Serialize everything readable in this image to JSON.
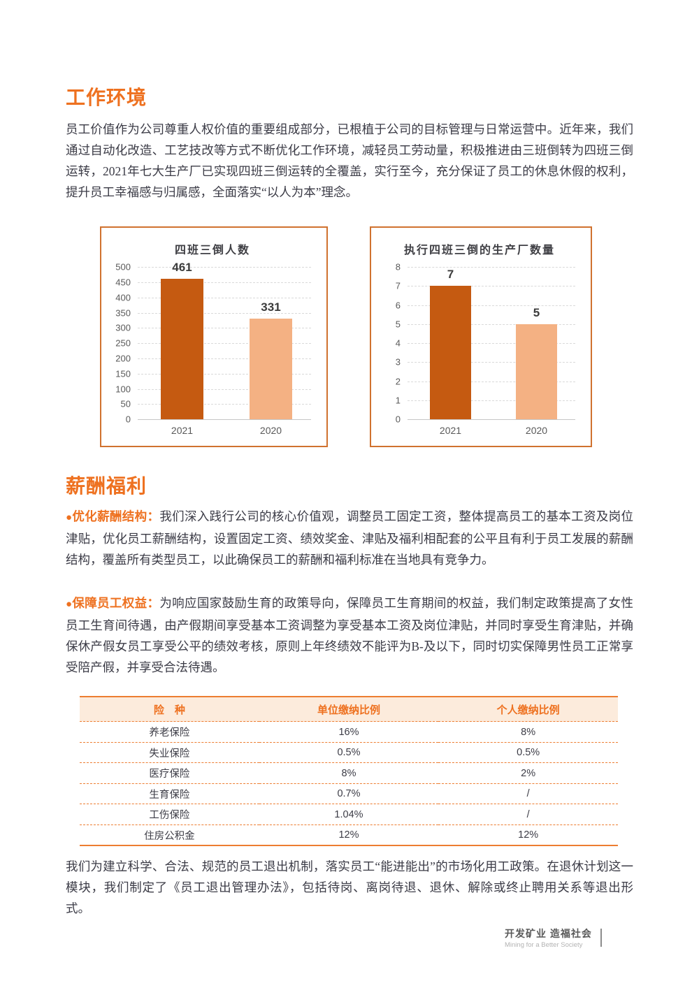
{
  "colors": {
    "accent_orange": "#EE7120",
    "table_line_orange": "#ED7D31",
    "table_header_bg": "#FCEBDC",
    "bar_dark": "#C55A11",
    "bar_light": "#F4B183",
    "body_text": "#3B3B46",
    "axis_text": "#595959",
    "chart_border": "#D0722F"
  },
  "work_env": {
    "title": "工作环境",
    "paragraph": "员工价值作为公司尊重人权价值的重要组成部分，已根植于公司的目标管理与日常运营中。近年来，我们通过自动化改造、工艺技改等方式不断优化工作环境，减轻员工劳动量，积极推进由三班倒转为四班三倒运转，2021年七大生产厂已实现四班三倒运转的全覆盖，实行至今，充分保证了员工的休息休假的权利，提升员工幸福感与归属感，全面落实“以人为本”理念。"
  },
  "chart_data": [
    {
      "type": "bar",
      "title": "四班三倒人数",
      "categories": [
        "2021",
        "2020"
      ],
      "values": [
        461,
        331
      ],
      "ylim": [
        0,
        500
      ],
      "ytick_step": 50,
      "xlabel": "",
      "ylabel": "",
      "grid": true,
      "legend": false,
      "bar_colors": [
        "#C55A11",
        "#F4B183"
      ]
    },
    {
      "type": "bar",
      "title": "执行四班三倒的生产厂数量",
      "categories": [
        "2021",
        "2020"
      ],
      "values": [
        7,
        5
      ],
      "ylim": [
        0,
        8
      ],
      "ytick_step": 1,
      "xlabel": "",
      "ylabel": "",
      "grid": true,
      "legend": false,
      "bar_colors": [
        "#C55A11",
        "#F4B183"
      ]
    }
  ],
  "compensation": {
    "title": "薪酬福利",
    "bullet_symbol": "●",
    "bullets": [
      {
        "lead": "优化薪酬结构：",
        "text": "我们深入践行公司的核心价值观，调整员工固定工资，整体提高员工的基本工资及岗位津贴，优化员工薪酬结构，设置固定工资、绩效奖金、津贴及福利相配套的公平且有利于员工发展的薪酬结构，覆盖所有类型员工，以此确保员工的薪酬和福利标准在当地具有竞争力。"
      },
      {
        "lead": "保障员工权益：",
        "text": "为响应国家鼓励生育的政策导向，保障员工生育期间的权益，我们制定政策提高了女性员工生育间待遇，由产假期间享受基本工资调整为享受基本工资及岗位津贴，并同时享受生育津贴，并确保休产假女员工享受公平的绩效考核，原则上年终绩效不能评为B-及以下，同时切实保障男性员工正常享受陪产假，并享受合法待遇。"
      }
    ],
    "closing": "我们为建立科学、合法、规范的员工退出机制，落实员工“能进能出”的市场化用工政策。在退休计划这一模块，我们制定了《员工退出管理办法》，包括待岗、离岗待退、退休、解除或终止聘用关系等退出形式。"
  },
  "table": {
    "headers": [
      "险　种",
      "单位缴纳比例",
      "个人缴纳比例"
    ],
    "rows": [
      [
        "养老保险",
        "16%",
        "8%"
      ],
      [
        "失业保险",
        "0.5%",
        "0.5%"
      ],
      [
        "医疗保险",
        "8%",
        "2%"
      ],
      [
        "生育保险",
        "0.7%",
        "/"
      ],
      [
        "工伤保险",
        "1.04%",
        "/"
      ],
      [
        "住房公积金",
        "12%",
        "12%"
      ]
    ]
  },
  "footer": {
    "slogan_cn": "开发矿业 造福社会",
    "slogan_en": "Mining for a Better Society"
  }
}
